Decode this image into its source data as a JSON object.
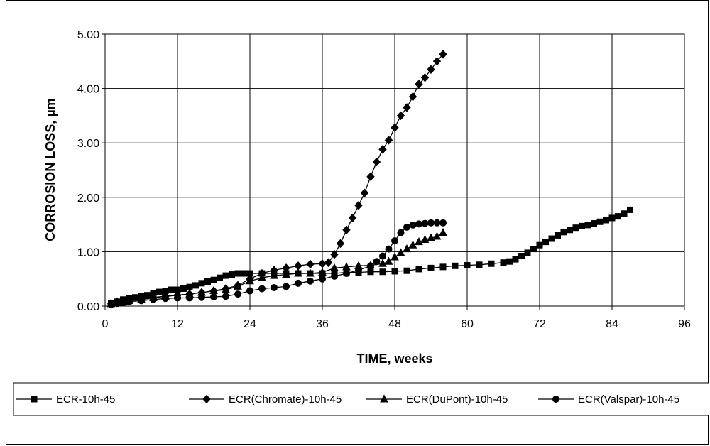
{
  "chart_data": {
    "type": "line",
    "xlabel": "TIME, weeks",
    "ylabel": "CORROSION LOSS, µm",
    "xlim": [
      0,
      96
    ],
    "ylim": [
      0,
      5
    ],
    "xticks": [
      "0",
      "12",
      "24",
      "36",
      "48",
      "60",
      "72",
      "84",
      "96"
    ],
    "yticks": [
      "0.00",
      "1.00",
      "2.00",
      "3.00",
      "4.00",
      "5.00"
    ],
    "grid": true,
    "legend_position": "bottom",
    "series": [
      {
        "name": "ECR-10h-45",
        "marker": "square",
        "color": "#000000",
        "x": [
          1,
          2,
          3,
          4,
          5,
          6,
          7,
          8,
          9,
          10,
          11,
          12,
          13,
          14,
          15,
          16,
          17,
          18,
          19,
          20,
          21,
          22,
          23,
          24,
          26,
          28,
          30,
          32,
          34,
          36,
          38,
          40,
          42,
          44,
          46,
          48,
          50,
          52,
          54,
          56,
          58,
          60,
          62,
          64,
          66,
          67,
          68,
          69,
          70,
          71,
          72,
          73,
          74,
          75,
          76,
          77,
          78,
          79,
          80,
          81,
          82,
          83,
          84,
          85,
          86,
          87
        ],
        "y": [
          0.05,
          0.08,
          0.12,
          0.14,
          0.16,
          0.18,
          0.2,
          0.23,
          0.26,
          0.28,
          0.3,
          0.3,
          0.32,
          0.35,
          0.38,
          0.42,
          0.45,
          0.48,
          0.52,
          0.56,
          0.58,
          0.6,
          0.6,
          0.6,
          0.6,
          0.6,
          0.6,
          0.6,
          0.6,
          0.6,
          0.6,
          0.62,
          0.62,
          0.63,
          0.63,
          0.64,
          0.65,
          0.68,
          0.7,
          0.72,
          0.74,
          0.75,
          0.76,
          0.78,
          0.8,
          0.82,
          0.86,
          0.92,
          0.98,
          1.05,
          1.12,
          1.18,
          1.24,
          1.3,
          1.36,
          1.4,
          1.44,
          1.47,
          1.49,
          1.52,
          1.55,
          1.58,
          1.62,
          1.65,
          1.7,
          1.77
        ]
      },
      {
        "name": "ECR(Chromate)-10h-45",
        "marker": "diamond",
        "color": "#000000",
        "x": [
          1,
          2,
          3,
          4,
          6,
          8,
          10,
          12,
          14,
          16,
          18,
          20,
          22,
          24,
          26,
          28,
          30,
          32,
          34,
          36,
          37,
          38,
          39,
          40,
          41,
          42,
          43,
          44,
          45,
          46,
          47,
          48,
          49,
          50,
          51,
          52,
          53,
          54,
          55,
          56
        ],
        "y": [
          0.05,
          0.08,
          0.1,
          0.12,
          0.14,
          0.16,
          0.18,
          0.2,
          0.22,
          0.25,
          0.28,
          0.32,
          0.38,
          0.5,
          0.6,
          0.66,
          0.7,
          0.74,
          0.77,
          0.78,
          0.8,
          0.95,
          1.15,
          1.4,
          1.62,
          1.85,
          2.08,
          2.38,
          2.65,
          2.88,
          3.05,
          3.28,
          3.5,
          3.65,
          3.85,
          4.08,
          4.2,
          4.35,
          4.5,
          4.63
        ]
      },
      {
        "name": "ECR(DuPont)-10h-45",
        "marker": "triangle",
        "color": "#000000",
        "x": [
          1,
          2,
          3,
          4,
          6,
          8,
          10,
          12,
          14,
          16,
          18,
          20,
          22,
          24,
          26,
          28,
          30,
          32,
          34,
          36,
          38,
          40,
          42,
          44,
          46,
          47,
          48,
          49,
          50,
          51,
          52,
          53,
          54,
          55,
          56
        ],
        "y": [
          0.04,
          0.06,
          0.08,
          0.1,
          0.12,
          0.15,
          0.18,
          0.2,
          0.22,
          0.25,
          0.28,
          0.3,
          0.36,
          0.46,
          0.52,
          0.56,
          0.58,
          0.6,
          0.6,
          0.62,
          0.7,
          0.72,
          0.74,
          0.75,
          0.78,
          0.82,
          0.9,
          0.98,
          1.05,
          1.12,
          1.18,
          1.22,
          1.25,
          1.28,
          1.35
        ]
      },
      {
        "name": "ECR(Valspar)-10h-45",
        "marker": "circle",
        "color": "#000000",
        "x": [
          1,
          2,
          3,
          4,
          6,
          8,
          10,
          12,
          14,
          16,
          18,
          20,
          22,
          24,
          26,
          28,
          30,
          32,
          34,
          36,
          38,
          40,
          42,
          44,
          45,
          46,
          47,
          48,
          49,
          50,
          51,
          52,
          53,
          54,
          55,
          56
        ],
        "y": [
          0.03,
          0.05,
          0.06,
          0.08,
          0.1,
          0.12,
          0.14,
          0.15,
          0.15,
          0.16,
          0.17,
          0.18,
          0.22,
          0.28,
          0.32,
          0.34,
          0.36,
          0.42,
          0.46,
          0.5,
          0.55,
          0.6,
          0.66,
          0.74,
          0.82,
          0.92,
          1.05,
          1.2,
          1.35,
          1.45,
          1.49,
          1.51,
          1.52,
          1.53,
          1.53,
          1.53
        ]
      }
    ]
  }
}
